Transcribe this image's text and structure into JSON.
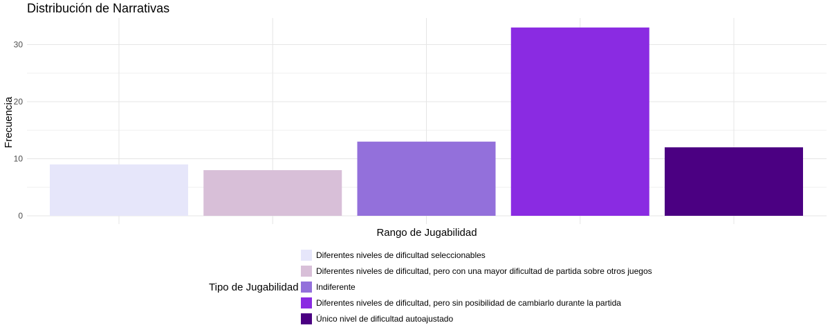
{
  "chart_data": {
    "type": "bar",
    "title": "Distribución de Narrativas",
    "xlabel": "Rango de Jugabilidad",
    "ylabel": "Frecuencia",
    "ylim": [
      0,
      34.6
    ],
    "yticks": [
      0,
      10,
      20,
      30
    ],
    "grid": true,
    "legend": {
      "title": "Tipo de Jugabilidad",
      "position": "bottom"
    },
    "categories": [
      "Diferentes niveles de dificultad seleccionables",
      "Diferentes niveles de dificultad, pero con una mayor dificultad de partida sobre otros juegos",
      "Indiferente",
      "Diferentes niveles de dificultad, pero sin posibilidad de cambiarlo durante la partida",
      "Único nivel de dificultad autoajustado"
    ],
    "values": [
      9,
      8,
      13,
      33,
      12
    ],
    "colors": [
      "#e6e6fa",
      "#d8bfd8",
      "#9370db",
      "#8a2be2",
      "#4b0082"
    ]
  }
}
